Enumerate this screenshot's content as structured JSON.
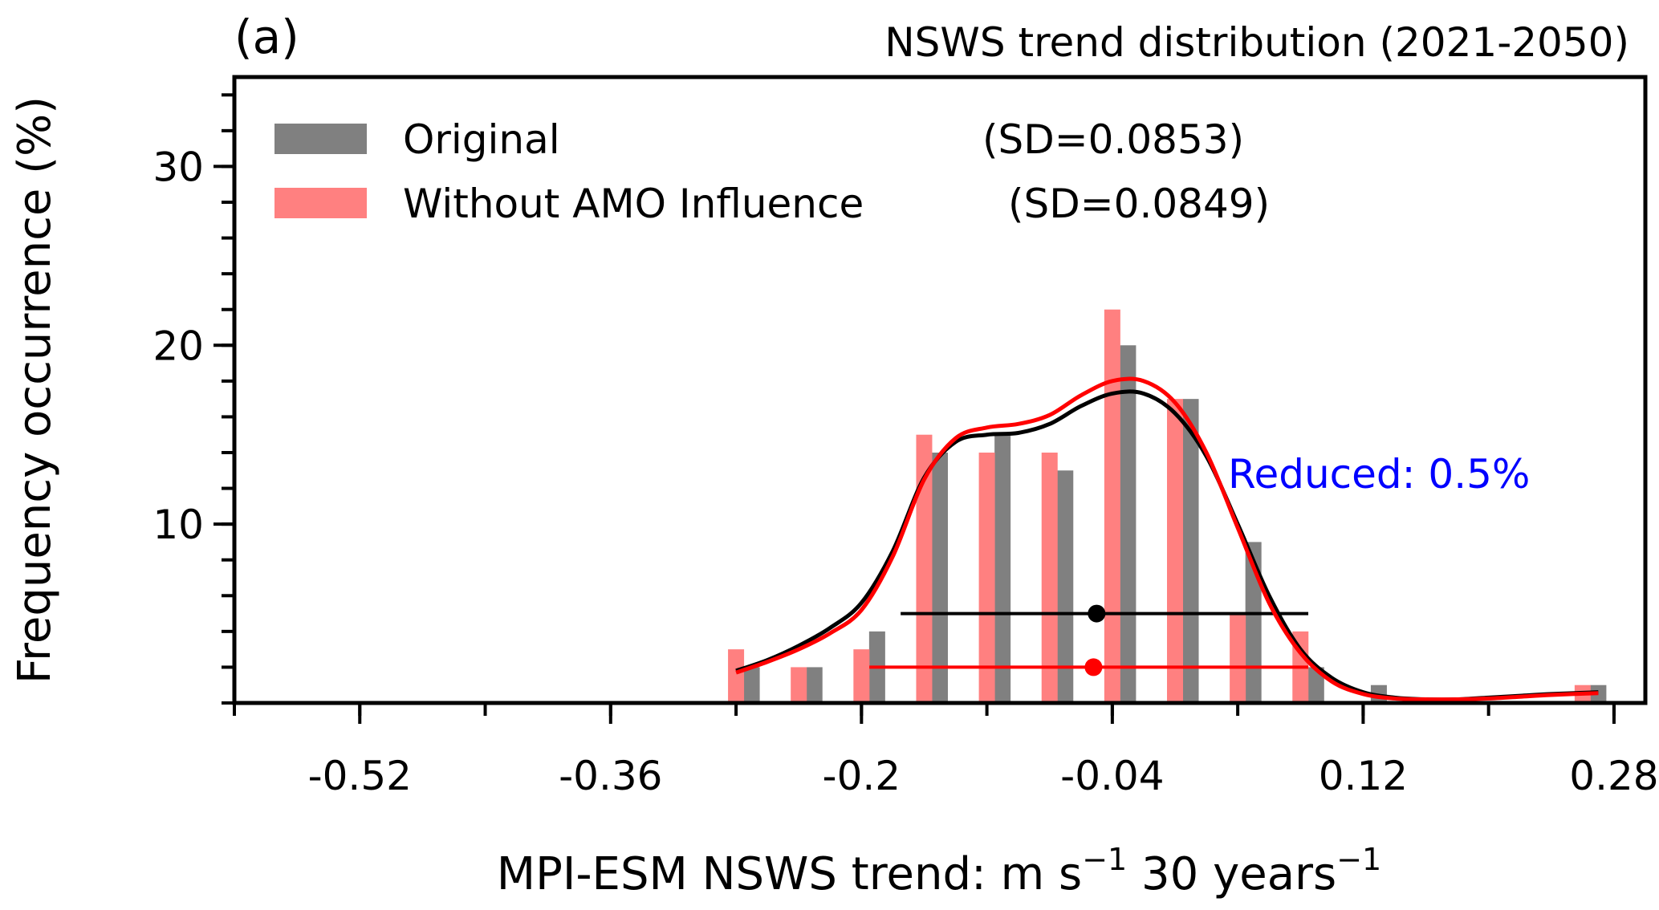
{
  "chart_data": {
    "type": "bar",
    "panel_label": "(a)",
    "title": "NSWS trend distribution (2021-2050)",
    "xlabel": {
      "main": "MPI-ESM NSWS trend: m s",
      "sup1": "−1",
      "mid": " 30 years",
      "sup2": "−1"
    },
    "ylabel": "Frequency occurrence (%)",
    "xlim": [
      -0.6,
      0.3
    ],
    "ylim": [
      0,
      35
    ],
    "xticks": [
      -0.52,
      -0.36,
      -0.2,
      -0.04,
      0.12,
      0.28
    ],
    "xtick_labels": [
      "-0.52",
      "-0.36",
      "-0.2",
      "-0.04",
      "0.12",
      "0.28"
    ],
    "yticks": [
      10,
      20,
      30
    ],
    "ytick_labels": [
      "10",
      "20",
      "30"
    ],
    "legend_position": "top-left",
    "series": [
      {
        "name": "Original",
        "sd_label": "(SD=0.0853)",
        "color": "#808080",
        "line_color": "#000000",
        "x": [
          -0.27,
          -0.23,
          -0.19,
          -0.15,
          -0.11,
          -0.07,
          -0.03,
          0.01,
          0.05,
          0.09,
          0.13,
          0.27
        ],
        "values": [
          2,
          2,
          4,
          14,
          15,
          13,
          20,
          17,
          9,
          2,
          1,
          1
        ],
        "kde": {
          "x": [
            -0.28,
            -0.26,
            -0.24,
            -0.22,
            -0.2,
            -0.18,
            -0.16,
            -0.14,
            -0.12,
            -0.1,
            -0.08,
            -0.06,
            -0.04,
            -0.02,
            0.0,
            0.02,
            0.04,
            0.06,
            0.08,
            0.1,
            0.12,
            0.14,
            0.16,
            0.18,
            0.2,
            0.22,
            0.24,
            0.27
          ],
          "y": [
            1.8,
            2.4,
            3.2,
            4.2,
            5.6,
            8.5,
            12.6,
            14.6,
            15.0,
            15.1,
            15.6,
            16.6,
            17.3,
            17.3,
            16.2,
            13.8,
            10.0,
            6.0,
            3.0,
            1.4,
            0.6,
            0.3,
            0.2,
            0.2,
            0.3,
            0.4,
            0.5,
            0.6
          ]
        },
        "mean": -0.05,
        "range": [
          -0.175,
          0.085
        ],
        "marker_y": 5
      },
      {
        "name": "Without AMO Influence",
        "sd_label": "(SD=0.0849)",
        "color": "#ff8080",
        "line_color": "#ff0000",
        "x": [
          -0.28,
          -0.24,
          -0.2,
          -0.16,
          -0.12,
          -0.08,
          -0.04,
          0.0,
          0.04,
          0.08,
          0.12,
          0.26
        ],
        "values": [
          3,
          2,
          3,
          15,
          14,
          14,
          22,
          17,
          5,
          4,
          0,
          1
        ],
        "kde": {
          "x": [
            -0.28,
            -0.26,
            -0.24,
            -0.22,
            -0.2,
            -0.18,
            -0.16,
            -0.14,
            -0.12,
            -0.1,
            -0.08,
            -0.06,
            -0.04,
            -0.02,
            0.0,
            0.02,
            0.04,
            0.06,
            0.08,
            0.1,
            0.12,
            0.14,
            0.16,
            0.18,
            0.2,
            0.22,
            0.24,
            0.27
          ],
          "y": [
            1.7,
            2.3,
            3.0,
            3.9,
            5.2,
            8.2,
            12.5,
            14.8,
            15.4,
            15.6,
            16.1,
            17.2,
            18.0,
            18.0,
            16.8,
            14.0,
            9.8,
            5.6,
            2.8,
            1.2,
            0.5,
            0.25,
            0.2,
            0.2,
            0.25,
            0.35,
            0.45,
            0.55
          ]
        },
        "mean": -0.052,
        "range": [
          -0.195,
          0.085
        ],
        "marker_y": 2
      }
    ],
    "annotation": {
      "text": "Reduced: 0.5%",
      "color": "#0000ff"
    }
  }
}
